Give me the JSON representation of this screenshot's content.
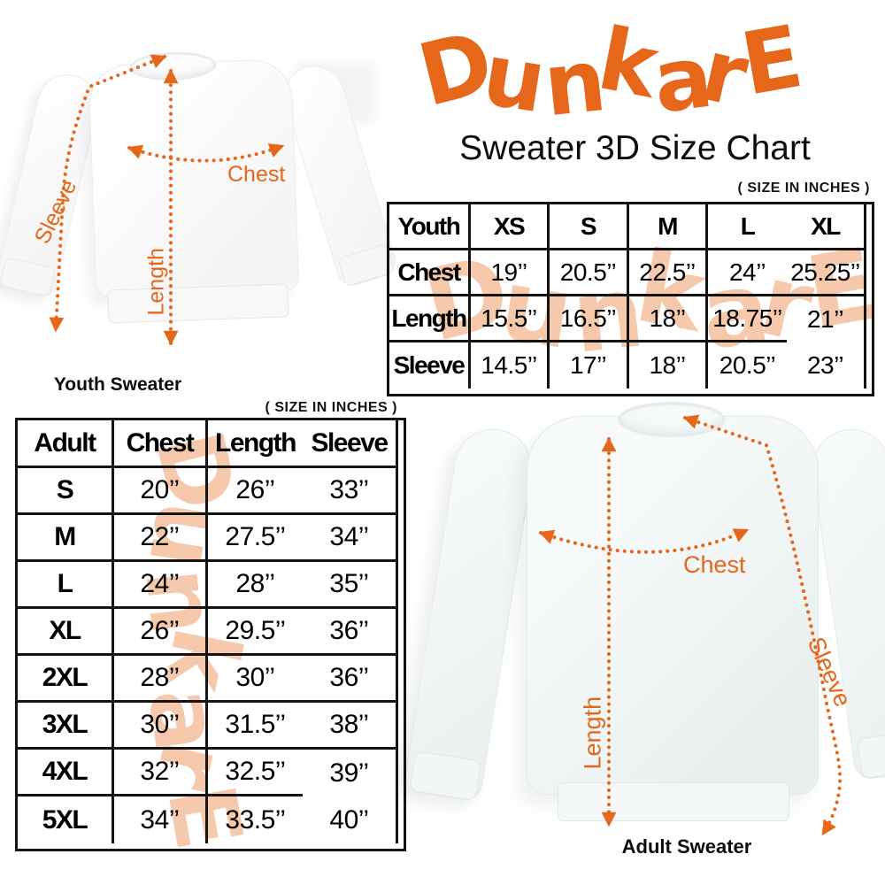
{
  "brand": {
    "logo_text": "DunkarE",
    "accent_color": "#E6661A",
    "watermark_color": "#F6C7A8"
  },
  "header": {
    "subtitle": "Sweater 3D Size Chart"
  },
  "size_note": "( SIZE IN INCHES )",
  "youth_table": {
    "header": [
      "Youth",
      "XS",
      "S",
      "M",
      "L",
      "XL"
    ],
    "rows": [
      [
        "Chest",
        "19’’",
        "20.5’’",
        "22.5’’",
        "24’’",
        "25.25’’"
      ],
      [
        "Length",
        "15.5’’",
        "16.5’’",
        "18’’",
        "18.75’’",
        "21’’"
      ],
      [
        "Sleeve",
        "14.5’’",
        "17’’",
        "18’’",
        "20.5’’",
        "23’’"
      ]
    ]
  },
  "adult_table": {
    "header": [
      "Adult",
      "Chest",
      "Length",
      "Sleeve"
    ],
    "rows": [
      [
        "S",
        "20’’",
        "26’’",
        "33’’"
      ],
      [
        "M",
        "22’’",
        "27.5’’",
        "34’’"
      ],
      [
        "L",
        "24’’",
        "28’’",
        "35’’"
      ],
      [
        "XL",
        "26’’",
        "29.5’’",
        "36’’"
      ],
      [
        "2XL",
        "28’’",
        "30’’",
        "36’’"
      ],
      [
        "3XL",
        "30’’",
        "31.5’’",
        "38’’"
      ],
      [
        "4XL",
        "32’’",
        "32.5’’",
        "39’’"
      ],
      [
        "5XL",
        "34’’",
        "33.5’’",
        "40’’"
      ]
    ]
  },
  "youth_diagram": {
    "caption": "Youth Sweater",
    "labels": {
      "chest": "Chest",
      "length": "Length",
      "sleeve": "Sleeve"
    }
  },
  "adult_diagram": {
    "caption": "Adult Sweater",
    "labels": {
      "chest": "Chest",
      "length": "Length",
      "sleeve": "Sleeve"
    }
  },
  "chart_data": [
    {
      "type": "table",
      "title": "Youth Sweater 3D Size Chart (size in inches)",
      "columns": [
        "Youth",
        "XS",
        "S",
        "M",
        "L",
        "XL"
      ],
      "rows": [
        [
          "Chest",
          19,
          20.5,
          22.5,
          24,
          25.25
        ],
        [
          "Length",
          15.5,
          16.5,
          18,
          18.75,
          21
        ],
        [
          "Sleeve",
          14.5,
          17,
          18,
          20.5,
          23
        ]
      ]
    },
    {
      "type": "table",
      "title": "Adult Sweater 3D Size Chart (size in inches)",
      "columns": [
        "Adult",
        "Chest",
        "Length",
        "Sleeve"
      ],
      "rows": [
        [
          "S",
          20,
          26,
          33
        ],
        [
          "M",
          22,
          27.5,
          34
        ],
        [
          "L",
          24,
          28,
          35
        ],
        [
          "XL",
          26,
          29.5,
          36
        ],
        [
          "2XL",
          28,
          30,
          36
        ],
        [
          "3XL",
          30,
          31.5,
          38
        ],
        [
          "4XL",
          32,
          32.5,
          39
        ],
        [
          "5XL",
          34,
          33.5,
          40
        ]
      ]
    }
  ]
}
